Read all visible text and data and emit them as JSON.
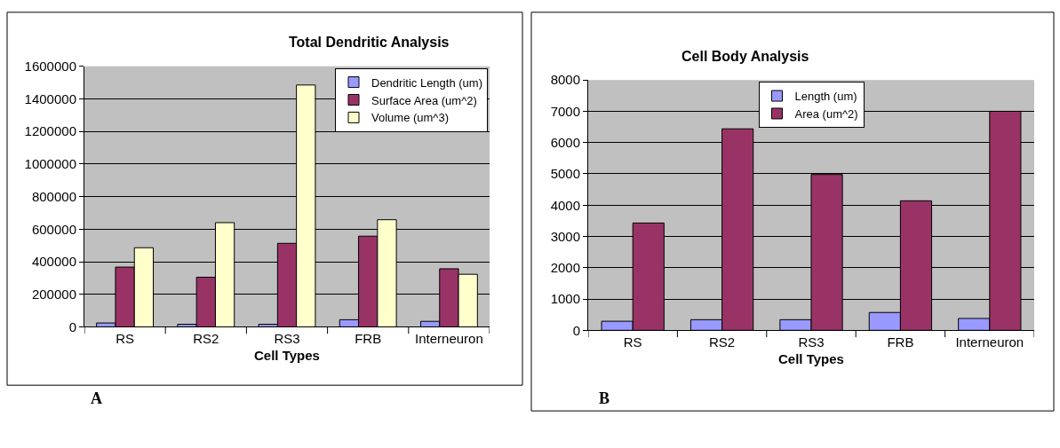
{
  "chart_data": [
    {
      "type": "bar",
      "title": "Total Dendritic Analysis",
      "xlabel": "Cell Types",
      "categories": [
        "RS",
        "RS2",
        "RS3",
        "FRB",
        "Interneuron"
      ],
      "series": [
        {
          "name": "Dendritic Length (um)",
          "color": "#9999ff",
          "values": [
            24000,
            16000,
            16000,
            44000,
            34000
          ]
        },
        {
          "name": "Surface Area (um^2)",
          "color": "#993366",
          "values": [
            367000,
            305000,
            513000,
            557000,
            357000
          ]
        },
        {
          "name": "Volume (um^3)",
          "color": "#ffffcc",
          "values": [
            486000,
            640000,
            1485000,
            658000,
            323000
          ]
        }
      ],
      "ylim": [
        0,
        1600000
      ],
      "yticks": [
        0,
        200000,
        400000,
        600000,
        800000,
        1000000,
        1200000,
        1400000,
        1600000
      ],
      "grid": "y",
      "legend": "top right",
      "annotations": [
        "A"
      ]
    },
    {
      "type": "bar",
      "title": "Cell Body Analysis",
      "xlabel": "Cell Types",
      "categories": [
        "RS",
        "RS2",
        "RS3",
        "FRB",
        "Interneuron"
      ],
      "series": [
        {
          "name": "Length (um)",
          "color": "#9999ff",
          "values": [
            290,
            340,
            340,
            570,
            380
          ]
        },
        {
          "name": "Area (um^2)",
          "color": "#993366",
          "values": [
            3430,
            6440,
            4980,
            4140,
            7000
          ]
        }
      ],
      "ylim": [
        0,
        8000
      ],
      "yticks": [
        0,
        1000,
        2000,
        3000,
        4000,
        5000,
        6000,
        7000,
        8000
      ],
      "grid": "y",
      "legend": "top",
      "annotations": [
        "B"
      ]
    }
  ]
}
